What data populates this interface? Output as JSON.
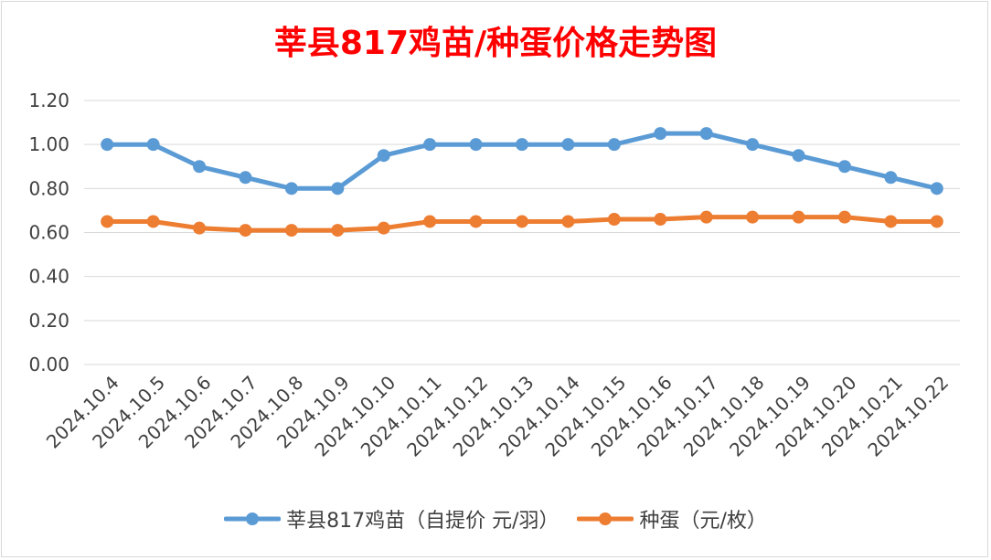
{
  "chart_data": {
    "type": "line",
    "title": "莘县817鸡苗/种蛋价格走势图",
    "xlabel": "",
    "ylabel": "",
    "categories": [
      "2024.10.4",
      "2024.10.5",
      "2024.10.6",
      "2024.10.7",
      "2024.10.8",
      "2024.10.9",
      "2024.10.10",
      "2024.10.11",
      "2024.10.12",
      "2024.10.13",
      "2024.10.14",
      "2024.10.15",
      "2024.10.16",
      "2024.10.17",
      "2024.10.18",
      "2024.10.19",
      "2024.10.20",
      "2024.10.21",
      "2024.10.22"
    ],
    "ylim": [
      0,
      1.2
    ],
    "yticks": [
      "0.00",
      "0.20",
      "0.40",
      "0.60",
      "0.80",
      "1.00",
      "1.20"
    ],
    "grid": true,
    "legend_position": "bottom",
    "series": [
      {
        "name": "莘县817鸡苗（自提价 元/羽）",
        "color": "#5b9bd5",
        "values": [
          1.0,
          1.0,
          0.9,
          0.85,
          0.8,
          0.8,
          0.95,
          1.0,
          1.0,
          1.0,
          1.0,
          1.0,
          1.05,
          1.05,
          1.0,
          0.95,
          0.9,
          0.85,
          0.8
        ]
      },
      {
        "name": "种蛋（元/枚）",
        "color": "#ed7d31",
        "values": [
          0.65,
          0.65,
          0.62,
          0.61,
          0.61,
          0.61,
          0.62,
          0.65,
          0.65,
          0.65,
          0.65,
          0.66,
          0.66,
          0.67,
          0.67,
          0.67,
          0.67,
          0.65,
          0.65
        ]
      }
    ]
  }
}
